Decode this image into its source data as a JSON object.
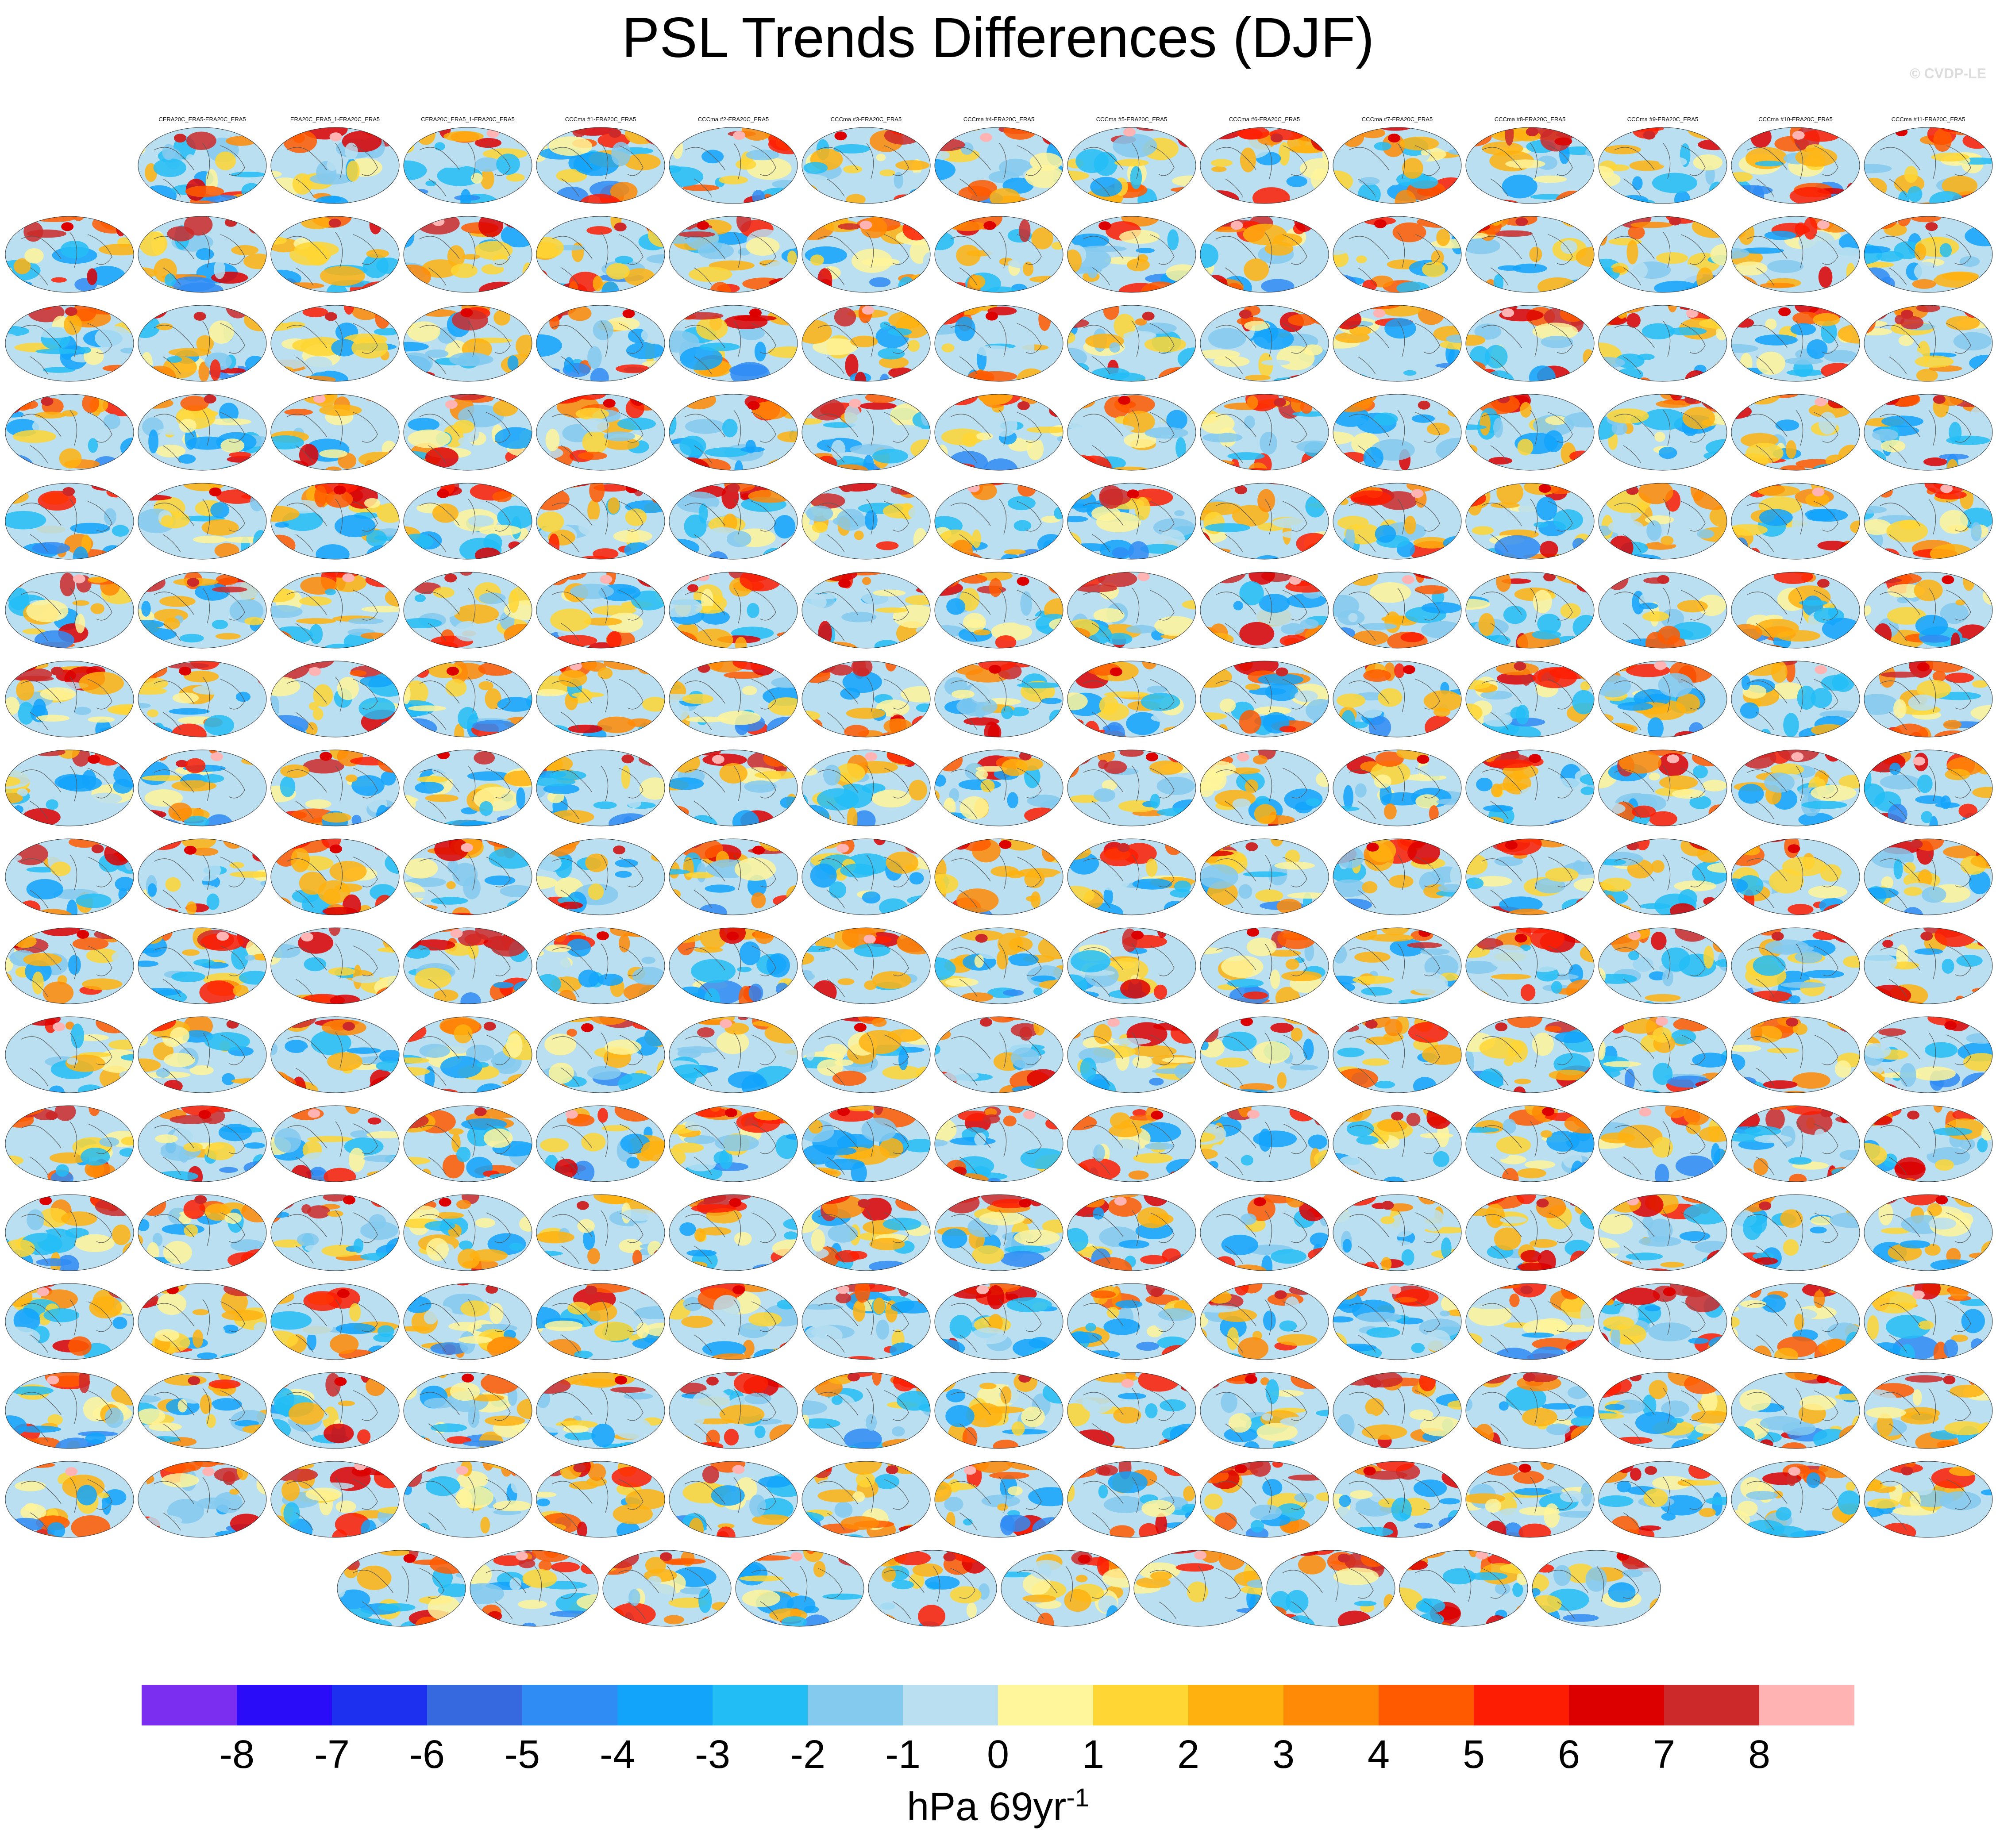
{
  "title": "PSL Trends Differences (DJF)",
  "credit": "© CVDP-LE",
  "chart_data": {
    "type": "heatmap",
    "title": "PSL Trends Differences (DJF)",
    "projection": "global map (Robinson-like)",
    "panel_count": 233,
    "panel_labels": [
      "CERA20C_ERA5-ERA20C_ERA5",
      "ERA20C_ERA5_1-ERA20C_ERA5",
      "CERA20C_ERA5_1-ERA20C_ERA5",
      "CCCma #1-ERA20C_ERA5",
      "CCCma #2-ERA20C_ERA5",
      "CCCma #3-ERA20C_ERA5",
      "CCCma #4-ERA20C_ERA5",
      "CCCma #5-ERA20C_ERA5",
      "CCCma #6-ERA20C_ERA5",
      "CCCma #7-ERA20C_ERA5",
      "CCCma #8-ERA20C_ERA5",
      "CCCma #9-ERA20C_ERA5",
      "CCCma #10-ERA20C_ERA5",
      "CCCma #11-ERA20C_ERA5"
    ],
    "colorbar": {
      "colors": [
        "#7b2ef0",
        "#2a0cf8",
        "#1e30ef",
        "#3669e0",
        "#2f8cf5",
        "#12a3fb",
        "#23bdf6",
        "#84c9ee",
        "#b9dff1",
        "#fff59a",
        "#ffd633",
        "#ffb20f",
        "#ff8a06",
        "#ff5a00",
        "#fd1d02",
        "#dc0000",
        "#cc2a2a",
        "#ffb3b3"
      ],
      "ticks": [
        "-8",
        "-7",
        "-6",
        "-5",
        "-4",
        "-3",
        "-2",
        "-1",
        "0",
        "1",
        "2",
        "3",
        "4",
        "5",
        "6",
        "7",
        "8"
      ],
      "range": [
        -9,
        9
      ]
    },
    "units": "hPa 69yr",
    "units_sup": "-1"
  }
}
